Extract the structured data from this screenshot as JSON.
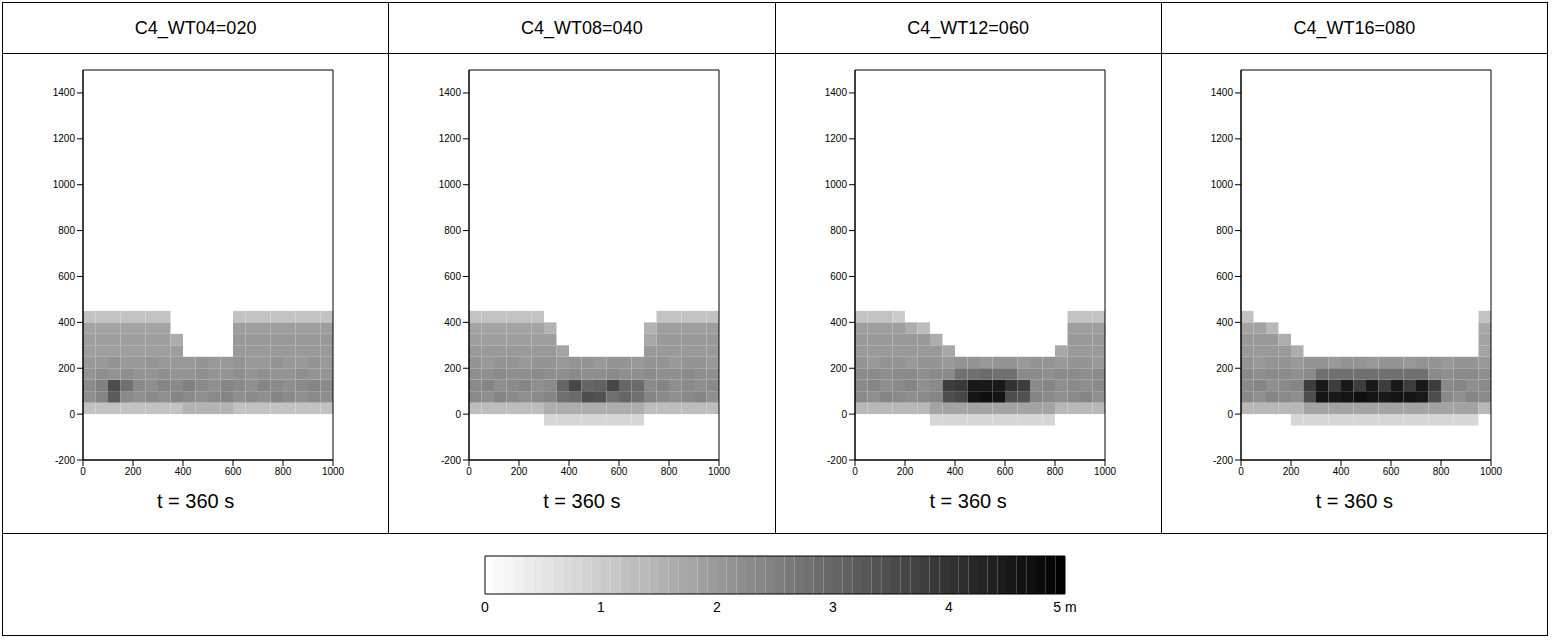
{
  "chart_data": [
    {
      "type": "heatmap",
      "title": "C4_WT04=020",
      "subtitle": "t = 360 s",
      "xlim": [
        0,
        1000
      ],
      "xticks": [
        0,
        200,
        400,
        600,
        800,
        1000
      ],
      "ylim": [
        -200,
        1500
      ],
      "yticks": [
        -200,
        0,
        200,
        400,
        600,
        800,
        1000,
        1200,
        1400
      ],
      "x_bins": [
        0,
        50,
        100,
        150,
        200,
        250,
        300,
        350,
        400,
        450,
        500,
        550,
        600,
        650,
        700,
        750,
        800,
        850,
        900,
        950,
        1000
      ],
      "y_bins": [
        -50,
        0,
        50,
        100,
        150,
        200,
        250,
        300,
        350,
        400,
        450
      ],
      "cells": [
        [
          null,
          null,
          null,
          null,
          null,
          null,
          null,
          null,
          null,
          null,
          null,
          null,
          null,
          null,
          null,
          null,
          null,
          null,
          null,
          null
        ],
        [
          1.2,
          1.2,
          1.2,
          1.2,
          1.2,
          1.2,
          1.2,
          1.2,
          1.5,
          1.5,
          1.5,
          1.5,
          1.2,
          1.2,
          1.2,
          1.2,
          1.2,
          1.2,
          1.2,
          1.2
        ],
        [
          2.2,
          2.4,
          3.2,
          2.3,
          2.2,
          2.3,
          2.2,
          2.4,
          2.3,
          2.2,
          2.3,
          2.4,
          2.2,
          2.3,
          2.2,
          2.4,
          2.3,
          2.2,
          2.3,
          2.2
        ],
        [
          2.3,
          2.5,
          3.5,
          2.8,
          2.3,
          2.2,
          2.4,
          2.3,
          2.5,
          2.3,
          2.2,
          2.4,
          2.3,
          2.2,
          2.4,
          2.3,
          2.2,
          2.3,
          2.4,
          2.3
        ],
        [
          2.1,
          2.2,
          2.1,
          2.2,
          2.1,
          2.1,
          2.2,
          2.1,
          2.1,
          2.2,
          2.1,
          2.1,
          2.2,
          2.1,
          2.2,
          2.1,
          2.1,
          2.2,
          2.1,
          2.1
        ],
        [
          2.0,
          2.0,
          2.1,
          2.0,
          2.0,
          2.1,
          2.0,
          2.0,
          2.0,
          2.1,
          2.0,
          2.0,
          2.1,
          2.0,
          2.0,
          2.1,
          2.0,
          2.0,
          2.1,
          2.0
        ],
        [
          1.9,
          1.9,
          1.9,
          1.9,
          1.9,
          1.9,
          1.9,
          1.9,
          null,
          null,
          null,
          null,
          2.0,
          2.0,
          2.0,
          2.0,
          2.0,
          2.0,
          2.0,
          2.0
        ],
        [
          1.9,
          1.9,
          1.9,
          1.9,
          1.9,
          1.9,
          1.9,
          1.6,
          null,
          null,
          null,
          null,
          2.0,
          2.0,
          2.0,
          2.0,
          2.0,
          2.0,
          2.0,
          2.0
        ],
        [
          1.8,
          1.8,
          1.8,
          1.8,
          1.8,
          1.8,
          1.8,
          null,
          null,
          null,
          null,
          null,
          1.9,
          1.9,
          1.9,
          1.9,
          1.9,
          1.9,
          1.9,
          1.9
        ],
        [
          1.2,
          1.2,
          1.2,
          1.2,
          1.2,
          1.2,
          1.2,
          null,
          null,
          null,
          null,
          null,
          1.2,
          1.2,
          1.2,
          1.2,
          1.2,
          1.2,
          1.2,
          1.2
        ]
      ]
    },
    {
      "type": "heatmap",
      "title": "C4_WT08=040",
      "subtitle": "t = 360 s",
      "xlim": [
        0,
        1000
      ],
      "xticks": [
        0,
        200,
        400,
        600,
        800,
        1000
      ],
      "ylim": [
        -200,
        1500
      ],
      "yticks": [
        -200,
        0,
        200,
        400,
        600,
        800,
        1000,
        1200,
        1400
      ],
      "x_bins": [
        0,
        50,
        100,
        150,
        200,
        250,
        300,
        350,
        400,
        450,
        500,
        550,
        600,
        650,
        700,
        750,
        800,
        850,
        900,
        950,
        1000
      ],
      "y_bins": [
        -50,
        0,
        50,
        100,
        150,
        200,
        250,
        300,
        350,
        400,
        450
      ],
      "cells": [
        [
          null,
          null,
          null,
          null,
          null,
          null,
          0.8,
          0.8,
          0.8,
          0.8,
          0.8,
          0.8,
          0.8,
          0.8,
          null,
          null,
          null,
          null,
          null,
          null
        ],
        [
          1.3,
          1.3,
          1.3,
          1.3,
          1.3,
          1.3,
          1.6,
          1.6,
          1.6,
          1.6,
          1.6,
          1.6,
          1.6,
          1.6,
          1.3,
          1.3,
          1.3,
          1.3,
          1.3,
          1.3
        ],
        [
          2.3,
          2.2,
          2.4,
          2.3,
          2.2,
          2.3,
          2.4,
          2.8,
          2.9,
          3.5,
          3.4,
          2.8,
          3.0,
          2.8,
          2.4,
          2.3,
          2.2,
          2.3,
          2.4,
          2.2
        ],
        [
          2.3,
          2.4,
          2.2,
          2.3,
          2.4,
          2.2,
          2.3,
          3.0,
          3.6,
          3.0,
          3.1,
          3.6,
          3.0,
          2.9,
          2.3,
          2.4,
          2.2,
          2.3,
          2.2,
          2.3
        ],
        [
          2.2,
          2.2,
          2.3,
          2.2,
          2.2,
          2.3,
          2.2,
          2.2,
          2.3,
          2.2,
          2.2,
          2.3,
          2.2,
          2.2,
          2.3,
          2.2,
          2.2,
          2.3,
          2.2,
          2.2
        ],
        [
          2.1,
          2.0,
          2.1,
          2.1,
          2.0,
          2.1,
          2.1,
          2.0,
          2.1,
          2.1,
          2.0,
          2.1,
          2.1,
          2.0,
          2.1,
          2.1,
          2.0,
          2.1,
          2.1,
          2.0
        ],
        [
          2.0,
          2.0,
          2.0,
          2.0,
          2.0,
          2.0,
          2.0,
          1.8,
          null,
          null,
          null,
          null,
          null,
          null,
          2.0,
          2.0,
          2.0,
          2.0,
          2.0,
          2.0
        ],
        [
          1.9,
          1.9,
          1.9,
          1.9,
          1.9,
          1.9,
          1.9,
          null,
          null,
          null,
          null,
          null,
          null,
          null,
          1.7,
          2.0,
          2.0,
          2.0,
          2.0,
          2.0
        ],
        [
          1.8,
          1.8,
          1.8,
          1.8,
          1.8,
          1.8,
          1.5,
          null,
          null,
          null,
          null,
          null,
          null,
          null,
          1.5,
          1.9,
          1.9,
          1.9,
          1.9,
          1.9
        ],
        [
          1.2,
          1.2,
          1.2,
          1.2,
          1.2,
          1.2,
          null,
          null,
          null,
          null,
          null,
          null,
          null,
          null,
          null,
          1.2,
          1.2,
          1.2,
          1.2,
          1.2
        ]
      ]
    },
    {
      "type": "heatmap",
      "title": "C4_WT12=060",
      "subtitle": "t = 360 s",
      "xlim": [
        0,
        1000
      ],
      "xticks": [
        0,
        200,
        400,
        600,
        800,
        1000
      ],
      "ylim": [
        -200,
        1500
      ],
      "yticks": [
        -200,
        0,
        200,
        400,
        600,
        800,
        1000,
        1200,
        1400
      ],
      "x_bins": [
        0,
        50,
        100,
        150,
        200,
        250,
        300,
        350,
        400,
        450,
        500,
        550,
        600,
        650,
        700,
        750,
        800,
        850,
        900,
        950,
        1000
      ],
      "y_bins": [
        -50,
        0,
        50,
        100,
        150,
        200,
        250,
        300,
        350,
        400,
        450
      ],
      "cells": [
        [
          null,
          null,
          null,
          null,
          null,
          null,
          0.8,
          0.8,
          0.8,
          0.8,
          0.8,
          0.8,
          0.8,
          0.8,
          0.8,
          0.8,
          null,
          null,
          null,
          null
        ],
        [
          1.4,
          1.4,
          1.4,
          1.4,
          1.4,
          1.4,
          1.8,
          1.8,
          1.8,
          1.8,
          1.8,
          1.8,
          1.8,
          1.8,
          1.8,
          1.8,
          1.4,
          1.4,
          1.4,
          1.4
        ],
        [
          2.3,
          2.2,
          2.4,
          2.3,
          2.2,
          2.3,
          2.4,
          3.5,
          3.6,
          4.6,
          4.7,
          4.6,
          3.5,
          3.4,
          2.4,
          2.3,
          2.2,
          2.3,
          2.4,
          2.2
        ],
        [
          2.3,
          2.4,
          2.2,
          2.3,
          2.4,
          2.2,
          2.3,
          3.8,
          3.9,
          4.5,
          4.5,
          4.5,
          4.0,
          3.8,
          2.3,
          2.4,
          2.2,
          2.3,
          2.2,
          2.3
        ],
        [
          2.3,
          2.3,
          2.2,
          2.3,
          2.3,
          2.2,
          2.3,
          2.3,
          2.8,
          2.8,
          2.9,
          2.8,
          2.8,
          2.3,
          2.3,
          2.2,
          2.3,
          2.3,
          2.2,
          2.3
        ],
        [
          2.1,
          2.0,
          2.1,
          2.1,
          2.0,
          2.1,
          2.1,
          2.0,
          2.1,
          2.1,
          2.0,
          2.1,
          2.1,
          2.0,
          2.1,
          2.1,
          2.0,
          2.1,
          2.1,
          2.0
        ],
        [
          2.0,
          2.0,
          2.0,
          2.0,
          2.0,
          2.0,
          2.0,
          1.7,
          null,
          null,
          null,
          null,
          null,
          null,
          null,
          null,
          1.7,
          2.0,
          2.0,
          2.0
        ],
        [
          2.0,
          2.0,
          2.0,
          2.0,
          2.0,
          2.0,
          1.6,
          null,
          null,
          null,
          null,
          null,
          null,
          null,
          null,
          null,
          null,
          2.0,
          2.0,
          2.0
        ],
        [
          1.9,
          1.9,
          1.9,
          1.9,
          1.6,
          1.3,
          null,
          null,
          null,
          null,
          null,
          null,
          null,
          null,
          null,
          null,
          null,
          1.9,
          1.9,
          1.9
        ],
        [
          1.2,
          1.2,
          1.2,
          1.0,
          null,
          null,
          null,
          null,
          null,
          null,
          null,
          null,
          null,
          null,
          null,
          null,
          null,
          1.2,
          1.2,
          1.2
        ]
      ]
    },
    {
      "type": "heatmap",
      "title": "C4_WT16=080",
      "subtitle": "t = 360 s",
      "xlim": [
        0,
        1000
      ],
      "xticks": [
        0,
        200,
        400,
        600,
        800,
        1000
      ],
      "ylim": [
        -200,
        1500
      ],
      "yticks": [
        -200,
        0,
        200,
        400,
        600,
        800,
        1000,
        1200,
        1400
      ],
      "x_bins": [
        0,
        50,
        100,
        150,
        200,
        250,
        300,
        350,
        400,
        450,
        500,
        550,
        600,
        650,
        700,
        750,
        800,
        850,
        900,
        950,
        1000
      ],
      "y_bins": [
        -50,
        0,
        50,
        100,
        150,
        200,
        250,
        300,
        350,
        400,
        450
      ],
      "cells": [
        [
          null,
          null,
          null,
          null,
          0.8,
          0.8,
          0.8,
          0.8,
          0.8,
          0.8,
          0.8,
          0.8,
          0.8,
          0.8,
          0.8,
          0.8,
          0.8,
          0.8,
          0.8,
          null
        ],
        [
          1.4,
          1.4,
          1.4,
          1.4,
          1.4,
          1.8,
          1.8,
          1.8,
          1.8,
          1.8,
          1.8,
          1.8,
          1.8,
          1.8,
          1.8,
          1.8,
          1.8,
          1.8,
          1.8,
          1.4
        ],
        [
          2.3,
          2.2,
          2.4,
          2.3,
          2.2,
          3.5,
          4.6,
          4.5,
          4.6,
          4.7,
          4.6,
          4.5,
          4.6,
          4.6,
          4.5,
          3.5,
          2.3,
          2.2,
          2.4,
          2.3
        ],
        [
          2.3,
          2.4,
          2.2,
          2.3,
          2.4,
          3.8,
          4.5,
          3.8,
          4.5,
          3.8,
          4.5,
          3.8,
          4.5,
          3.8,
          4.5,
          3.8,
          2.3,
          2.4,
          2.2,
          2.3
        ],
        [
          2.3,
          2.2,
          2.3,
          2.3,
          2.2,
          2.3,
          2.8,
          2.8,
          2.8,
          2.8,
          2.8,
          2.8,
          2.8,
          2.8,
          2.8,
          2.3,
          2.2,
          2.3,
          2.3,
          2.2
        ],
        [
          2.1,
          2.0,
          2.1,
          2.1,
          2.0,
          2.1,
          2.1,
          2.0,
          2.1,
          2.1,
          2.0,
          2.1,
          2.1,
          2.0,
          2.1,
          2.1,
          2.0,
          2.1,
          2.1,
          2.0
        ],
        [
          2.0,
          2.0,
          2.0,
          2.0,
          1.6,
          null,
          null,
          null,
          null,
          null,
          null,
          null,
          null,
          null,
          null,
          null,
          null,
          null,
          null,
          1.8
        ],
        [
          2.0,
          2.0,
          2.0,
          1.6,
          null,
          null,
          null,
          null,
          null,
          null,
          null,
          null,
          null,
          null,
          null,
          null,
          null,
          null,
          null,
          1.8
        ],
        [
          1.8,
          1.8,
          1.4,
          null,
          null,
          null,
          null,
          null,
          null,
          null,
          null,
          null,
          null,
          null,
          null,
          null,
          null,
          null,
          null,
          1.7
        ],
        [
          1.2,
          null,
          null,
          null,
          null,
          null,
          null,
          null,
          null,
          null,
          null,
          null,
          null,
          null,
          null,
          null,
          null,
          null,
          null,
          1.2
        ]
      ]
    }
  ],
  "colorbar": {
    "range": [
      0,
      5
    ],
    "ticks": [
      0,
      1,
      2,
      3,
      4,
      {
        "value": 5,
        "label": "5 m"
      }
    ]
  }
}
